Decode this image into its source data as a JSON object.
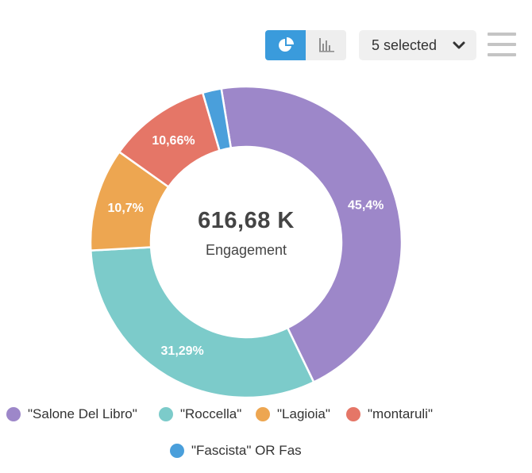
{
  "toolbar": {
    "pie_view_icon": "pie-chart-icon",
    "bar_view_icon": "bar-chart-icon",
    "series_select_label": "5 selected",
    "series_select_icon": "chevron-down-icon",
    "menu_icon": "hamburger-menu-icon",
    "active_view": "pie"
  },
  "chart_data": {
    "type": "pie",
    "donut": true,
    "center_value": "616,68 K",
    "center_label": "Engagement",
    "legend_position": "bottom",
    "slices": [
      {
        "name": "\"Salone Del Libro\"",
        "value": 45.4,
        "label": "45,4%",
        "color": "#9d87c9"
      },
      {
        "name": "\"Roccella\"",
        "value": 31.29,
        "label": "31,29%",
        "color": "#7ccbca"
      },
      {
        "name": "\"Lagioia\"",
        "value": 10.7,
        "label": "10,7%",
        "color": "#eda651"
      },
      {
        "name": "\"montaruli\"",
        "value": 10.66,
        "label": "10,66%",
        "color": "#e57667"
      },
      {
        "name": "\"Fascista\" OR Fas",
        "value": 1.95,
        "label": "",
        "color": "#4a9fdb"
      }
    ]
  }
}
